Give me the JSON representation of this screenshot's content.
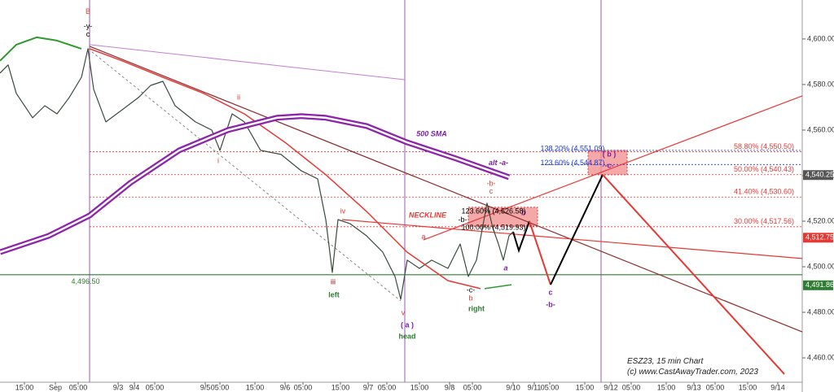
{
  "chart_data": {
    "type": "line",
    "xlim": [
      0,
      197
    ],
    "ylim": [
      4449.3,
      4617.1
    ],
    "yticks": [
      {
        "value": 4460,
        "label": "4,460.00"
      },
      {
        "value": 4480,
        "label": "4,480.00"
      },
      {
        "value": 4500,
        "label": "4,500.00"
      },
      {
        "value": 4520,
        "label": "4,520.00"
      },
      {
        "value": 4540,
        "label": "4,540.00"
      },
      {
        "value": 4560,
        "label": "4,560.00"
      },
      {
        "value": 4580,
        "label": "4,580.00"
      },
      {
        "value": 4600,
        "label": "4,600.00"
      }
    ],
    "xticks": [
      {
        "value": 6,
        "label": "15:00"
      },
      {
        "value": 13.6,
        "label": "Sep"
      },
      {
        "value": 19.2,
        "label": "05:00"
      },
      {
        "value": 29,
        "label": "9/3"
      },
      {
        "value": 33,
        "label": "9/4"
      },
      {
        "value": 38,
        "label": "05:00"
      },
      {
        "value": 50.4,
        "label": "9/5"
      },
      {
        "value": 54,
        "label": "05:00"
      },
      {
        "value": 62.6,
        "label": "15:00"
      },
      {
        "value": 70,
        "label": "9/6"
      },
      {
        "value": 74.4,
        "label": "05:00"
      },
      {
        "value": 83.6,
        "label": "15:00"
      },
      {
        "value": 90.4,
        "label": "9/7"
      },
      {
        "value": 95,
        "label": "05:00"
      },
      {
        "value": 103,
        "label": "15:00"
      },
      {
        "value": 110.4,
        "label": "9/8"
      },
      {
        "value": 116,
        "label": "05:00"
      },
      {
        "value": 126,
        "label": "9/10"
      },
      {
        "value": 131.2,
        "label": "9/11"
      },
      {
        "value": 135,
        "label": "05:00"
      },
      {
        "value": 143.6,
        "label": "15:00"
      },
      {
        "value": 150,
        "label": "9/12"
      },
      {
        "value": 155,
        "label": "05:00"
      },
      {
        "value": 163.6,
        "label": "15:00"
      },
      {
        "value": 170.4,
        "label": "9/13"
      },
      {
        "value": 175.6,
        "label": "05:00"
      },
      {
        "value": 183.6,
        "label": "15:00"
      },
      {
        "value": 191,
        "label": "9/14"
      }
    ],
    "series": [
      {
        "color": "#3b4a3f",
        "width": 1.2,
        "x": [
          0,
          2,
          4,
          8,
          11,
          14,
          17,
          20,
          21.6,
          23,
          26,
          30,
          34,
          37,
          40,
          43,
          48,
          52,
          54,
          57,
          60,
          64,
          69,
          74,
          78,
          80,
          81.6,
          83,
          86,
          90,
          94,
          97,
          98.4,
          100,
          103,
          106,
          110,
          113,
          115,
          117,
          119.6,
          121,
          122.4,
          123.6,
          125,
          126
        ],
        "values": [
          4585,
          4588.6,
          4576.1,
          4565.4,
          4570.7,
          4567.1,
          4574.3,
          4583.2,
          4595.7,
          4577.9,
          4563.6,
          4568.9,
          4574.3,
          4579.6,
          4581.4,
          4570.7,
          4563.6,
          4560,
          4551.1,
          4567.1,
          4563.6,
          4551.1,
          4549.3,
          4542.1,
          4538.6,
          4520.7,
          4497.5,
          4520.7,
          4518.9,
          4513.6,
          4506.4,
          4495.7,
          4485.7,
          4502.9,
          4499.3,
          4502.9,
          4499.3,
          4510,
          4495.7,
          4502.9,
          4527.9,
          4517.1,
          4510,
          4502.9,
          4513.6,
          4515.4
        ]
      },
      {
        "color": "#2e9a2e",
        "width": 2,
        "x": [
          0,
          4,
          9,
          14,
          20
        ],
        "values": [
          4590.4,
          4597.5,
          4600.7,
          4599.3,
          4595.7
        ]
      },
      {
        "color": "#2e9a2e",
        "width": 1.5,
        "x": [
          119,
          125.6
        ],
        "values": [
          4490.4,
          4492.1
        ]
      },
      {
        "color": "#e53935",
        "width": 1.5,
        "x": [
          22,
          30,
          40,
          50,
          60,
          70,
          80,
          90,
          100,
          110,
          118
        ],
        "values": [
          4595.7,
          4590.4,
          4583.2,
          4576.1,
          4567.1,
          4554.6,
          4540.4,
          4524.3,
          4506.4,
          4493.9,
          4490.4
        ]
      },
      {
        "color": "#8e24aa",
        "width": 7,
        "double": true,
        "x": [
          0,
          12,
          22,
          32,
          44,
          56,
          68,
          74,
          80,
          90,
          100,
          112,
          125
        ],
        "values": [
          4506.4,
          4513.6,
          4522.5,
          4536.8,
          4551.1,
          4560,
          4565.4,
          4566.1,
          4565.4,
          4561.8,
          4554.6,
          4547.5,
          4539.3
        ]
      }
    ],
    "trendlines": [
      {
        "color": "#c77dd6",
        "width": 1,
        "x": [
          22,
          99.4
        ],
        "values": [
          4597.5,
          4582.1
        ]
      },
      {
        "color": "#8b2a2a",
        "width": 1.2,
        "x": [
          22,
          197
        ],
        "values": [
          4596.8,
          4471.4
        ]
      },
      {
        "color": "#e53935",
        "width": 1.2,
        "x": [
          84,
          197
        ],
        "values": [
          4520.7,
          4503.6
        ]
      },
      {
        "color": "#e53935",
        "width": 1.2,
        "x": [
          104,
          197
        ],
        "values": [
          4511.8,
          4575
        ]
      },
      {
        "color": "#888888",
        "width": 1,
        "dashed": true,
        "x": [
          21.6,
          98.4
        ],
        "values": [
          4595.7,
          4485
        ]
      },
      {
        "color": "#000000",
        "width": 2,
        "x": [
          126,
          127.4,
          130
        ],
        "values": [
          4515.4,
          4507.1,
          4520
        ]
      },
      {
        "color": "#e53935",
        "width": 2,
        "x": [
          130,
          135.2
        ],
        "values": [
          4520,
          4492.1
        ]
      },
      {
        "color": "#000000",
        "width": 2,
        "x": [
          135.2,
          148
        ],
        "values": [
          4492.1,
          4540.4
        ]
      },
      {
        "color": "#e53935",
        "width": 2,
        "x": [
          148,
          192.6
        ],
        "values": [
          4540.4,
          4452.9
        ]
      }
    ],
    "zones": [
      {
        "color": "#f28b8b",
        "x": [
          115,
          132
        ],
        "y": [
          4517.9,
          4526.1
        ]
      },
      {
        "color": "#f28b8b",
        "x": [
          144.4,
          154
        ],
        "y": [
          4540.4,
          4551.1
        ]
      }
    ],
    "levels": [
      {
        "value": 4550.5,
        "label": "58.80% (4,550.50)",
        "color": "#e53935",
        "x_start": 22
      },
      {
        "value": 4540.43,
        "label": "50.00% (4,540.43)",
        "color": "#e53935",
        "x_start": 22
      },
      {
        "value": 4530.6,
        "label": "41.40% (4,530.60)",
        "color": "#e53935",
        "x_start": 22
      },
      {
        "value": 4517.56,
        "label": "30.00% (4,517.56)",
        "color": "#e53935",
        "x_start": 22
      },
      {
        "value": 4551.09,
        "color": "#1e3cd0",
        "x_start": 133
      },
      {
        "value": 4544.87,
        "color": "#1e3cd0",
        "x_start": 133
      }
    ],
    "support": {
      "value": 4496.5,
      "label": "4,496.50",
      "color": "#2e7d32",
      "label_x": 21
    },
    "vlines": [
      {
        "x": 22,
        "color": "#9b59b6"
      },
      {
        "x": 99.4,
        "color": "#9b59b6"
      },
      {
        "x": 147.6,
        "color": "#9b59b6"
      }
    ],
    "price_tags": [
      {
        "value": 4540.25,
        "label": "4,540.25",
        "color": "#555555"
      },
      {
        "value": 4512.75,
        "label": "4,512.75",
        "color": "#e53935"
      },
      {
        "value": 4491.86,
        "label": "4,491.86",
        "color": "#2e7d32"
      }
    ],
    "annotations": [
      {
        "text": "B",
        "x": 21.6,
        "y": 4611.8,
        "color": "#e53935"
      },
      {
        "text": "-y-",
        "x": 21.6,
        "y": 4605.4,
        "color": "#000000"
      },
      {
        "text": "c",
        "x": 21.6,
        "y": 4601.8,
        "color": "#000000"
      },
      {
        "text": "ii",
        "x": 58.6,
        "y": 4574.3,
        "color": "#e53935"
      },
      {
        "text": "i",
        "x": 53.6,
        "y": 4546.4,
        "color": "#e53935"
      },
      {
        "text": "iii",
        "x": 81.8,
        "y": 4493.2,
        "color": "#8b0000"
      },
      {
        "text": "left",
        "x": 82,
        "y": 4487.5,
        "color": "#2e7d32",
        "style": "bold"
      },
      {
        "text": "iv",
        "x": 84.2,
        "y": 4524.3,
        "color": "#e53935"
      },
      {
        "text": "v",
        "x": 99,
        "y": 4479.6,
        "color": "#e53935"
      },
      {
        "text": "( a )",
        "x": 100,
        "y": 4474.3,
        "color": "#7b1fa2",
        "style": "bold"
      },
      {
        "text": "head",
        "x": 100,
        "y": 4469.3,
        "color": "#2e7d32",
        "style": "bold"
      },
      {
        "text": "a",
        "x": 104,
        "y": 4512.9,
        "color": "#e53935"
      },
      {
        "text": "-b-",
        "x": 113.6,
        "y": 4520.4,
        "color": "#000000"
      },
      {
        "text": "-c-",
        "x": 115.6,
        "y": 4489.6,
        "color": "#000000"
      },
      {
        "text": "b",
        "x": 115.6,
        "y": 4486.1,
        "color": "#e53935"
      },
      {
        "text": "right",
        "x": 117,
        "y": 4481.4,
        "color": "#2e7d32",
        "style": "bold"
      },
      {
        "text": "-b-",
        "x": 120.6,
        "y": 4536.4,
        "color": "#e53935"
      },
      {
        "text": "c",
        "x": 120.6,
        "y": 4532.9,
        "color": "#e53935"
      },
      {
        "text": "b",
        "x": 128.6,
        "y": 4523.6,
        "color": "#7b1fa2",
        "style": "bold-italic"
      },
      {
        "text": "a",
        "x": 124.2,
        "y": 4499.3,
        "color": "#7b1fa2",
        "style": "bold-italic"
      },
      {
        "text": "c",
        "x": 135.2,
        "y": 4488.6,
        "color": "#7b1fa2",
        "style": "bold"
      },
      {
        "text": "-b-",
        "x": 135.2,
        "y": 4483.2,
        "color": "#7b1fa2",
        "style": "bold"
      },
      {
        "text": "( b )",
        "x": 149.6,
        "y": 4549.3,
        "color": "#7b1fa2",
        "style": "bold"
      },
      {
        "text": "-c-",
        "x": 149.6,
        "y": 4544.3,
        "color": "#7b1fa2",
        "style": "bold"
      },
      {
        "text": "NECKLINE",
        "x": 105,
        "y": 4522.5,
        "color": "#e53935",
        "style": "bold-italic"
      },
      {
        "text": "500 SMA",
        "x": 106,
        "y": 4558.2,
        "color": "#7b1fa2",
        "style": "bold-italic"
      },
      {
        "text": "alt -a-",
        "x": 122.4,
        "y": 4545.4,
        "color": "#7b1fa2",
        "style": "bold-italic"
      },
      {
        "text": "123.60% (4,526.58)",
        "x": 121.2,
        "y": 4524.3,
        "color": "#000000"
      },
      {
        "text": "100.00% (4,519.93)",
        "x": 121.2,
        "y": 4517.1,
        "color": "#000000"
      },
      {
        "text": "138.20% (4,551.09)",
        "x": 140.6,
        "y": 4551.8,
        "color": "#1e3cd0"
      },
      {
        "text": "123.60% (4,544.87)",
        "x": 140.6,
        "y": 4545.4,
        "color": "#1e3cd0"
      }
    ],
    "footer": [
      "ESZ23, 15 min Chart",
      "(c) www.CastAwayTrader.com, 2023"
    ]
  }
}
